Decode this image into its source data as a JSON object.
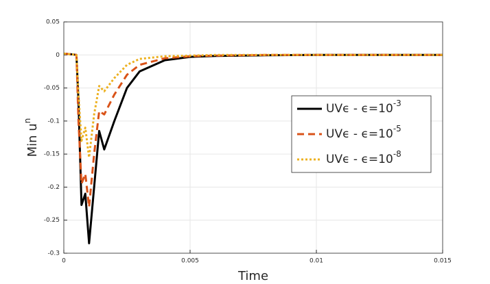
{
  "chart_data": {
    "type": "line",
    "xlabel": "Time",
    "ylabel": "Min u",
    "ylabel_superscript": "n",
    "x": [
      0,
      0.0003,
      0.0005,
      0.00058,
      0.0007,
      0.00085,
      0.001,
      0.0012,
      0.0014,
      0.0016,
      0.002,
      0.0025,
      0.003,
      0.004,
      0.005,
      0.006,
      0.008,
      0.01,
      0.015
    ],
    "series": [
      {
        "name": "UVϵ - ϵ=10",
        "name_exponent": "-3",
        "color": "#000000",
        "dash": "solid",
        "values": [
          0.002,
          0.001,
          0,
          -0.07,
          -0.227,
          -0.21,
          -0.285,
          -0.2,
          -0.115,
          -0.143,
          -0.1,
          -0.05,
          -0.025,
          -0.008,
          -0.003,
          -0.0015,
          -0.0005,
          0,
          0
        ]
      },
      {
        "name": "UVϵ - ϵ=10",
        "name_exponent": "-5",
        "color": "#d95319",
        "dash": "dashed",
        "values": [
          0.002,
          0.001,
          0,
          -0.1,
          -0.195,
          -0.18,
          -0.23,
          -0.15,
          -0.085,
          -0.09,
          -0.06,
          -0.03,
          -0.015,
          -0.005,
          -0.002,
          -0.001,
          0,
          0,
          0
        ]
      },
      {
        "name": "UVϵ - ϵ=10",
        "name_exponent": "-8",
        "color": "#edb120",
        "dash": "dotted",
        "values": [
          0.002,
          0.001,
          0,
          -0.06,
          -0.13,
          -0.11,
          -0.155,
          -0.09,
          -0.047,
          -0.055,
          -0.035,
          -0.015,
          -0.006,
          -0.002,
          -0.001,
          0,
          0,
          0,
          0
        ]
      }
    ],
    "xlim": [
      0,
      0.015
    ],
    "xticks": [
      0,
      0.005,
      0.01,
      0.015
    ],
    "ylim": [
      -0.3,
      0.05
    ],
    "yticks": [
      -0.3,
      -0.25,
      -0.2,
      -0.15,
      -0.1,
      -0.05,
      0,
      0.05
    ],
    "grid": true,
    "legend": "east"
  }
}
